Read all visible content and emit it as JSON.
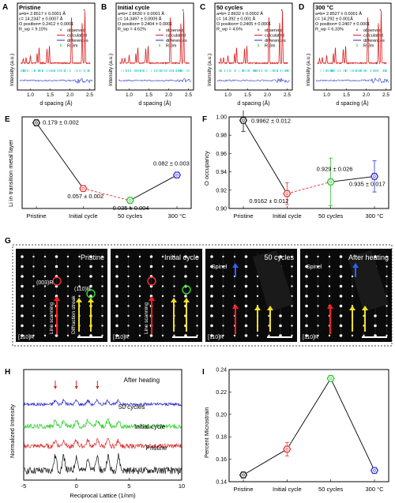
{
  "panels_ad": [
    {
      "letter": "A",
      "title": "Pristine",
      "lines": [
        "a=b= 2.8517 ± 0.0001 Å",
        "c= 14.2347 ± 0.0007 Å",
        "O position= 0.2412 ± 0.0001",
        "R_wp = 9.15%"
      ]
    },
    {
      "letter": "B",
      "title": "Initial cycle",
      "lines": [
        "a=b= 2.8630 ± 0.0001 Å",
        "c= 14.3497 ± 0.0009 Å",
        "O position= 0.2404 ± 0.0001",
        "R_wp = 4.62%"
      ]
    },
    {
      "letter": "C",
      "title": "50 cycles",
      "lines": [
        "a=b= 2.8632 ± 0.0002 Å",
        "c= 14.392 ± 0.001 Å",
        "O position= 0.2405 ± 0.0001",
        "R_wp = 4.6%"
      ]
    },
    {
      "letter": "D",
      "title": "300 °C",
      "lines": [
        "a=b= 2.8527 ± 0.0001 Å",
        "c= 14.292 ± 0.001Å",
        "O position= 0.2407 ± 0.0001",
        "R_wp = 6.33%"
      ]
    }
  ],
  "refinement_legend": [
    "observed",
    "calculated",
    "differences",
    "R-3m"
  ],
  "refinement_axis": {
    "xlabel": "d spacing (Å)",
    "ylabel": "Intensity (a.u.)",
    "ticks": [
      "1.0",
      "1.5",
      "2.0",
      "2.5"
    ]
  },
  "panel_E": {
    "letter": "E",
    "ylabel": "Li in transition metal layer"
  },
  "panel_F": {
    "letter": "F",
    "ylabel": "O occupancy"
  },
  "panel_G": {
    "letter": "G",
    "images": [
      {
        "title": "Pristine",
        "zone": "[110]R",
        "labels": [
          "(003)R",
          "(110)R",
          "Line scanning",
          "Diffraction streak"
        ]
      },
      {
        "title": "Initial cycle",
        "zone": "[110]R",
        "labels": [
          "Line scanning"
        ]
      },
      {
        "title": "50 cycles",
        "zone": "[110]R",
        "labels": [
          "Spinel"
        ]
      },
      {
        "title": "After heating",
        "zone": "[110]R",
        "labels": [
          "Spinel"
        ]
      }
    ]
  },
  "panel_H": {
    "letter": "H"
  },
  "panel_I": {
    "letter": "I"
  },
  "chart_data": [
    {
      "type": "line",
      "title": "",
      "xlabel": "",
      "ylabel": "Li in transition metal layer",
      "categories": [
        "Pristine",
        "Initial cycle",
        "50 cycles",
        "300 °C"
      ],
      "values": [
        0.179,
        0.057,
        0.035,
        0.082
      ],
      "errors": [
        0.002,
        0.002,
        0.004,
        0.003
      ],
      "point_labels": [
        "0.179 ± 0.002",
        "0.057 ± 0.002",
        "0.035 ± 0.004",
        "0.082 ± 0.003"
      ],
      "ylim": [
        0.02,
        0.19
      ],
      "colors": [
        "#111111",
        "#e53030",
        "#29c229",
        "#2a2ad8"
      ]
    },
    {
      "type": "line",
      "title": "",
      "xlabel": "",
      "ylabel": "O occupancy",
      "categories": [
        "Pristine",
        "Initial cycle",
        "50 cycles",
        "300 °C"
      ],
      "values": [
        0.9962,
        0.9162,
        0.929,
        0.935
      ],
      "errors": [
        0.012,
        0.012,
        0.026,
        0.017
      ],
      "point_labels": [
        "0.9962 ± 0.012",
        "0.9162 ± 0.012",
        "0.929 ± 0.026",
        "0.935 ± 0.017"
      ],
      "ylim": [
        0.9,
        1.0
      ],
      "yticks": [
        "0.90",
        "0.92",
        "0.94",
        "0.96",
        "0.98",
        "1.00"
      ],
      "colors": [
        "#111111",
        "#e53030",
        "#29c229",
        "#2a2ad8"
      ]
    },
    {
      "type": "line",
      "title": "",
      "xlabel": "Reciprocal Lattice (1/nm)",
      "ylabel": "Normalized Intensity",
      "x_range": [
        -5,
        10
      ],
      "xticks": [
        "-5",
        "0",
        "5",
        "10"
      ],
      "series": [
        {
          "name": "After heating",
          "color": "#2222cc"
        },
        {
          "name": "50 cycles",
          "color": "#22cc22"
        },
        {
          "name": "Initial cycle",
          "color": "#dd2222"
        },
        {
          "name": "Pristine",
          "color": "#111111"
        }
      ]
    },
    {
      "type": "line",
      "title": "",
      "xlabel": "",
      "ylabel": "Percent Microstrain",
      "categories": [
        "Pristine",
        "Initial cycle",
        "50 cycles",
        "300 °C"
      ],
      "values": [
        0.146,
        0.169,
        0.232,
        0.15
      ],
      "errors": [
        0.002,
        0.006,
        0.002,
        0.002
      ],
      "ylim": [
        0.14,
        0.24
      ],
      "yticks": [
        "0.14",
        "0.16",
        "0.18",
        "0.20",
        "0.22",
        "0.24"
      ],
      "colors": [
        "#111111",
        "#e53030",
        "#29c229",
        "#2a2ad8"
      ]
    }
  ]
}
